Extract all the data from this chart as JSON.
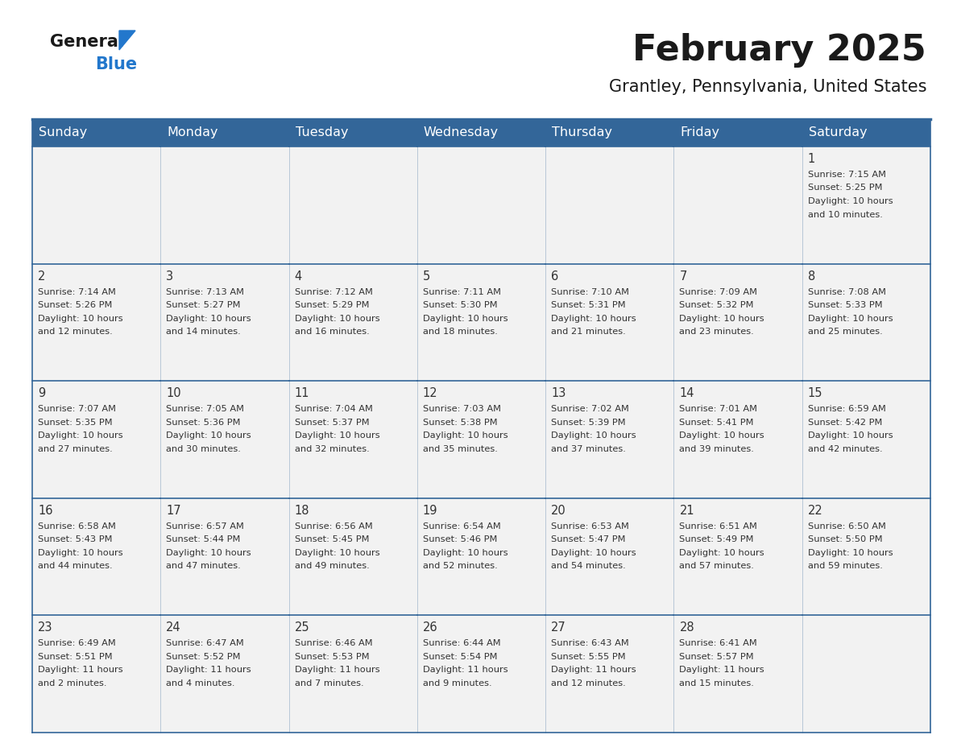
{
  "title": "February 2025",
  "subtitle": "Grantley, Pennsylvania, United States",
  "days_of_week": [
    "Sunday",
    "Monday",
    "Tuesday",
    "Wednesday",
    "Thursday",
    "Friday",
    "Saturday"
  ],
  "header_bg": "#336699",
  "header_text_color": "#ffffff",
  "cell_bg": "#f2f2f2",
  "border_color": "#336699",
  "text_color": "#333333",
  "title_color": "#1a1a1a",
  "calendar_data": [
    [
      null,
      null,
      null,
      null,
      null,
      null,
      {
        "day": 1,
        "sunrise": "7:15 AM",
        "sunset": "5:25 PM",
        "daylight": "10 hours and 10 minutes."
      }
    ],
    [
      {
        "day": 2,
        "sunrise": "7:14 AM",
        "sunset": "5:26 PM",
        "daylight": "10 hours and 12 minutes."
      },
      {
        "day": 3,
        "sunrise": "7:13 AM",
        "sunset": "5:27 PM",
        "daylight": "10 hours and 14 minutes."
      },
      {
        "day": 4,
        "sunrise": "7:12 AM",
        "sunset": "5:29 PM",
        "daylight": "10 hours and 16 minutes."
      },
      {
        "day": 5,
        "sunrise": "7:11 AM",
        "sunset": "5:30 PM",
        "daylight": "10 hours and 18 minutes."
      },
      {
        "day": 6,
        "sunrise": "7:10 AM",
        "sunset": "5:31 PM",
        "daylight": "10 hours and 21 minutes."
      },
      {
        "day": 7,
        "sunrise": "7:09 AM",
        "sunset": "5:32 PM",
        "daylight": "10 hours and 23 minutes."
      },
      {
        "day": 8,
        "sunrise": "7:08 AM",
        "sunset": "5:33 PM",
        "daylight": "10 hours and 25 minutes."
      }
    ],
    [
      {
        "day": 9,
        "sunrise": "7:07 AM",
        "sunset": "5:35 PM",
        "daylight": "10 hours and 27 minutes."
      },
      {
        "day": 10,
        "sunrise": "7:05 AM",
        "sunset": "5:36 PM",
        "daylight": "10 hours and 30 minutes."
      },
      {
        "day": 11,
        "sunrise": "7:04 AM",
        "sunset": "5:37 PM",
        "daylight": "10 hours and 32 minutes."
      },
      {
        "day": 12,
        "sunrise": "7:03 AM",
        "sunset": "5:38 PM",
        "daylight": "10 hours and 35 minutes."
      },
      {
        "day": 13,
        "sunrise": "7:02 AM",
        "sunset": "5:39 PM",
        "daylight": "10 hours and 37 minutes."
      },
      {
        "day": 14,
        "sunrise": "7:01 AM",
        "sunset": "5:41 PM",
        "daylight": "10 hours and 39 minutes."
      },
      {
        "day": 15,
        "sunrise": "6:59 AM",
        "sunset": "5:42 PM",
        "daylight": "10 hours and 42 minutes."
      }
    ],
    [
      {
        "day": 16,
        "sunrise": "6:58 AM",
        "sunset": "5:43 PM",
        "daylight": "10 hours and 44 minutes."
      },
      {
        "day": 17,
        "sunrise": "6:57 AM",
        "sunset": "5:44 PM",
        "daylight": "10 hours and 47 minutes."
      },
      {
        "day": 18,
        "sunrise": "6:56 AM",
        "sunset": "5:45 PM",
        "daylight": "10 hours and 49 minutes."
      },
      {
        "day": 19,
        "sunrise": "6:54 AM",
        "sunset": "5:46 PM",
        "daylight": "10 hours and 52 minutes."
      },
      {
        "day": 20,
        "sunrise": "6:53 AM",
        "sunset": "5:47 PM",
        "daylight": "10 hours and 54 minutes."
      },
      {
        "day": 21,
        "sunrise": "6:51 AM",
        "sunset": "5:49 PM",
        "daylight": "10 hours and 57 minutes."
      },
      {
        "day": 22,
        "sunrise": "6:50 AM",
        "sunset": "5:50 PM",
        "daylight": "10 hours and 59 minutes."
      }
    ],
    [
      {
        "day": 23,
        "sunrise": "6:49 AM",
        "sunset": "5:51 PM",
        "daylight": "11 hours and 2 minutes."
      },
      {
        "day": 24,
        "sunrise": "6:47 AM",
        "sunset": "5:52 PM",
        "daylight": "11 hours and 4 minutes."
      },
      {
        "day": 25,
        "sunrise": "6:46 AM",
        "sunset": "5:53 PM",
        "daylight": "11 hours and 7 minutes."
      },
      {
        "day": 26,
        "sunrise": "6:44 AM",
        "sunset": "5:54 PM",
        "daylight": "11 hours and 9 minutes."
      },
      {
        "day": 27,
        "sunrise": "6:43 AM",
        "sunset": "5:55 PM",
        "daylight": "11 hours and 12 minutes."
      },
      {
        "day": 28,
        "sunrise": "6:41 AM",
        "sunset": "5:57 PM",
        "daylight": "11 hours and 15 minutes."
      },
      null
    ]
  ],
  "logo_general_color": "#1a1a1a",
  "logo_blue_color": "#2277cc",
  "logo_triangle_color": "#2277cc"
}
